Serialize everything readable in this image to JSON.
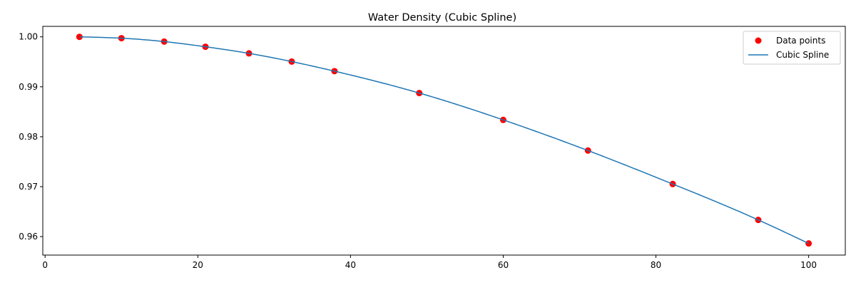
{
  "chart_data": {
    "type": "line",
    "title": "Water Density (Cubic Spline)",
    "xlabel": "",
    "ylabel": "",
    "xlim": [
      -0.3,
      104.8
    ],
    "ylim": [
      0.9563,
      1.0021
    ],
    "x_ticks": [
      0,
      20,
      40,
      60,
      80,
      100
    ],
    "y_ticks": [
      0.96,
      0.97,
      0.98,
      0.99,
      1.0
    ],
    "x_tick_labels": [
      "0",
      "20",
      "40",
      "60",
      "80",
      "100"
    ],
    "y_tick_labels": [
      "0.96",
      "0.97",
      "0.98",
      "0.99",
      "1.00"
    ],
    "grid": false,
    "legend_position": "top-right",
    "series": [
      {
        "name": "Data points",
        "kind": "scatter",
        "color": "#ff0000",
        "x": [
          4.5,
          10.0,
          15.6,
          21.0,
          26.7,
          32.3,
          37.9,
          49.0,
          60.0,
          71.1,
          82.2,
          93.4,
          100.0
        ],
        "y": [
          1.0,
          0.99973,
          0.99905,
          0.99802,
          0.99669,
          0.99505,
          0.99313,
          0.98875,
          0.98337,
          0.97723,
          0.97053,
          0.96334,
          0.95863
        ]
      },
      {
        "name": "Cubic Spline",
        "kind": "line",
        "color": "#1f77b4"
      }
    ]
  }
}
